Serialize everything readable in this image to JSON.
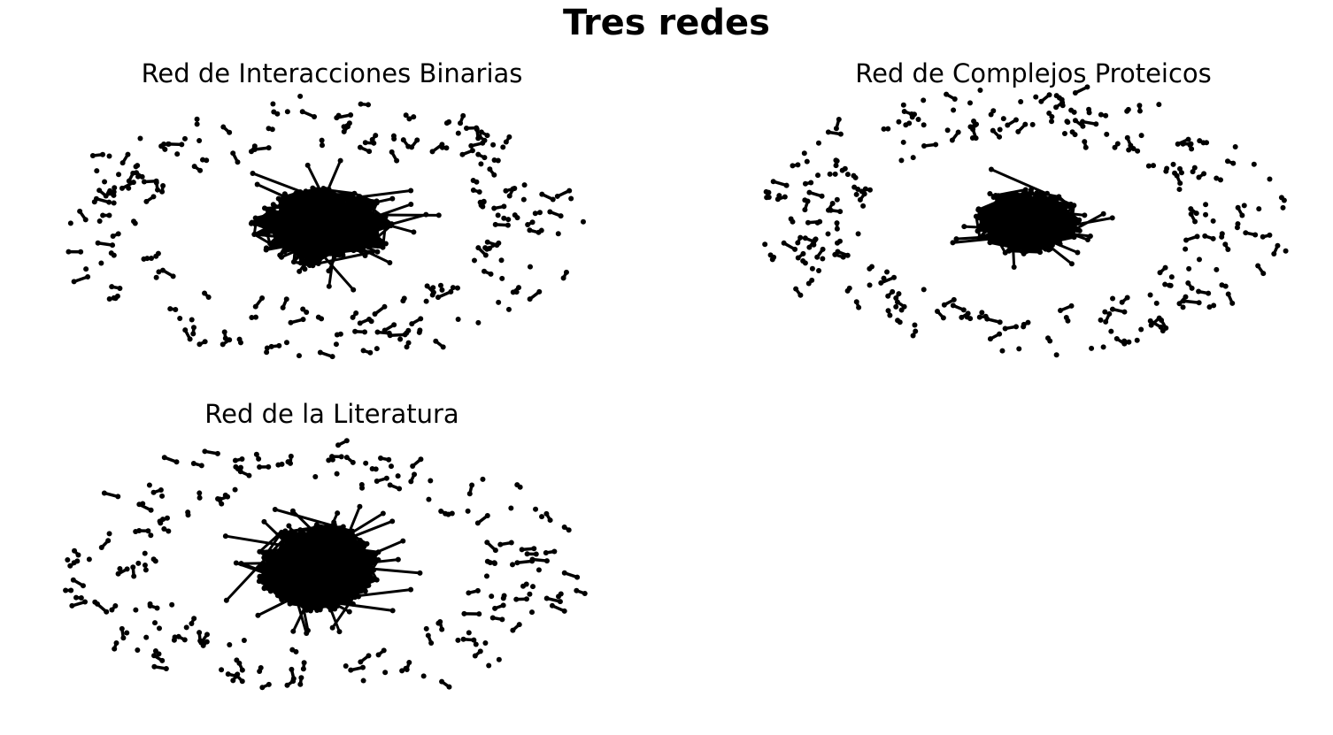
{
  "figure": {
    "title": "Tres redes"
  },
  "panels": [
    {
      "title": "Red de Interacciones Binarias"
    },
    {
      "title": "Red de Complejos Proteicos"
    },
    {
      "title": "Red de la Literatura"
    }
  ],
  "colors": {
    "node": "#000000",
    "edge": "#000000",
    "background": "#ffffff"
  }
}
